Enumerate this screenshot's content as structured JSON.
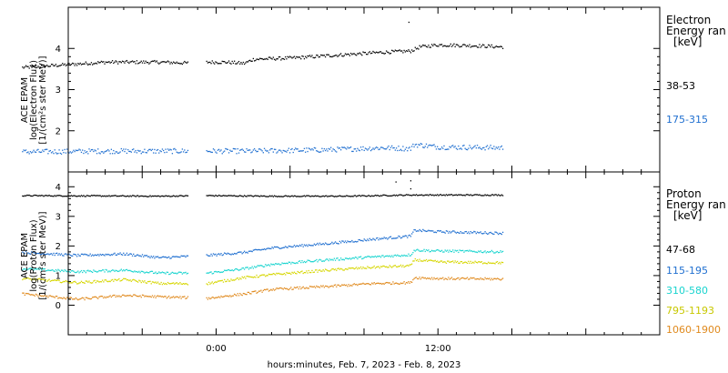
{
  "chart_data": [
    {
      "type": "scatter",
      "panel": "Electron",
      "ylabel_lines": [
        "ACE EPAM",
        "log(Electron Flux)",
        "[1/(cm²s ster MeV)]"
      ],
      "ylim": [
        1.0,
        5.0
      ],
      "yticks": [
        "2",
        "3",
        "4"
      ],
      "legend_title_lines": [
        "Electron",
        "Energy ran",
        "[keV]"
      ],
      "series": [
        {
          "name": "38-53",
          "color": "#000000",
          "x": [
            -10.5,
            -6.0,
            -3.0,
            -1.0,
            -0.5,
            0.5,
            1.5,
            2.0,
            4.0,
            6.5,
            9.0,
            10.5,
            11.0,
            12.0,
            14.0,
            15.5
          ],
          "y": [
            3.55,
            3.68,
            3.68,
            3.65,
            3.68,
            3.68,
            3.65,
            3.75,
            3.78,
            3.85,
            3.92,
            3.95,
            4.05,
            4.1,
            4.08,
            4.05
          ]
        },
        {
          "name": "175-315",
          "color": "#1f6fd0",
          "x": [
            -10.5,
            -6.0,
            -3.0,
            -0.5,
            2.0,
            6.0,
            9.0,
            10.5,
            10.7,
            12.0,
            15.5
          ],
          "y": [
            1.5,
            1.52,
            1.52,
            1.52,
            1.52,
            1.55,
            1.6,
            1.58,
            1.68,
            1.62,
            1.6
          ]
        }
      ]
    },
    {
      "type": "scatter",
      "panel": "Proton",
      "ylabel_lines": [
        "ACE EPAM",
        "log(Proton Flux)",
        "[1/(cm²s ster MeV)]"
      ],
      "ylim": [
        -1.0,
        4.5
      ],
      "yticks": [
        "0",
        "1",
        "2",
        "3",
        "4"
      ],
      "legend_title_lines": [
        "Proton",
        "Energy ran",
        "[keV]"
      ],
      "series": [
        {
          "name": "47-68",
          "color": "#000000",
          "x": [
            -10.5,
            -3.0,
            -0.5,
            3.0,
            7.0,
            10.5,
            12.0,
            15.5
          ],
          "y": [
            3.72,
            3.7,
            3.72,
            3.7,
            3.7,
            3.74,
            3.74,
            3.74
          ]
        },
        {
          "name": "115-195",
          "color": "#1f6fd0",
          "x": [
            -10.5,
            -7.5,
            -5.0,
            -3.0,
            -0.5,
            1.5,
            3.0,
            6.0,
            8.5,
            10.5,
            10.7,
            12.0,
            15.5
          ],
          "y": [
            1.8,
            1.7,
            1.75,
            1.62,
            1.7,
            1.8,
            1.95,
            2.1,
            2.25,
            2.35,
            2.55,
            2.5,
            2.45
          ]
        },
        {
          "name": "310-580",
          "color": "#19d4cf",
          "x": [
            -10.5,
            -7.5,
            -5.0,
            -3.0,
            -0.5,
            1.5,
            3.0,
            6.0,
            8.5,
            10.5,
            10.7,
            12.0,
            15.5
          ],
          "y": [
            1.25,
            1.15,
            1.2,
            1.1,
            1.1,
            1.25,
            1.4,
            1.55,
            1.65,
            1.72,
            1.88,
            1.85,
            1.82
          ]
        },
        {
          "name": "795-1193",
          "color": "#d6d600",
          "x": [
            -10.5,
            -7.5,
            -5.0,
            -3.0,
            -0.5,
            1.5,
            3.0,
            6.0,
            8.5,
            10.5,
            10.7,
            12.0,
            15.5
          ],
          "y": [
            0.92,
            0.78,
            0.88,
            0.75,
            0.75,
            0.95,
            1.05,
            1.2,
            1.3,
            1.35,
            1.55,
            1.48,
            1.45
          ]
        },
        {
          "name": "1060-1900",
          "color": "#e08a1e",
          "x": [
            -10.5,
            -7.5,
            -5.0,
            -3.0,
            -0.5,
            1.5,
            3.0,
            6.0,
            8.5,
            10.5,
            10.7,
            12.0,
            15.5
          ],
          "y": [
            0.4,
            0.22,
            0.35,
            0.3,
            0.25,
            0.4,
            0.55,
            0.65,
            0.75,
            0.78,
            0.95,
            0.92,
            0.9
          ]
        }
      ]
    }
  ],
  "x_axis": {
    "range_hours": [
      -8,
      24
    ],
    "tick_labels": [
      {
        "x": 0,
        "label": "0:00"
      },
      {
        "x": 12,
        "label": "12:00"
      }
    ],
    "label": "hours:minutes, Feb.  7, 2023 - Feb.  8, 2023"
  }
}
